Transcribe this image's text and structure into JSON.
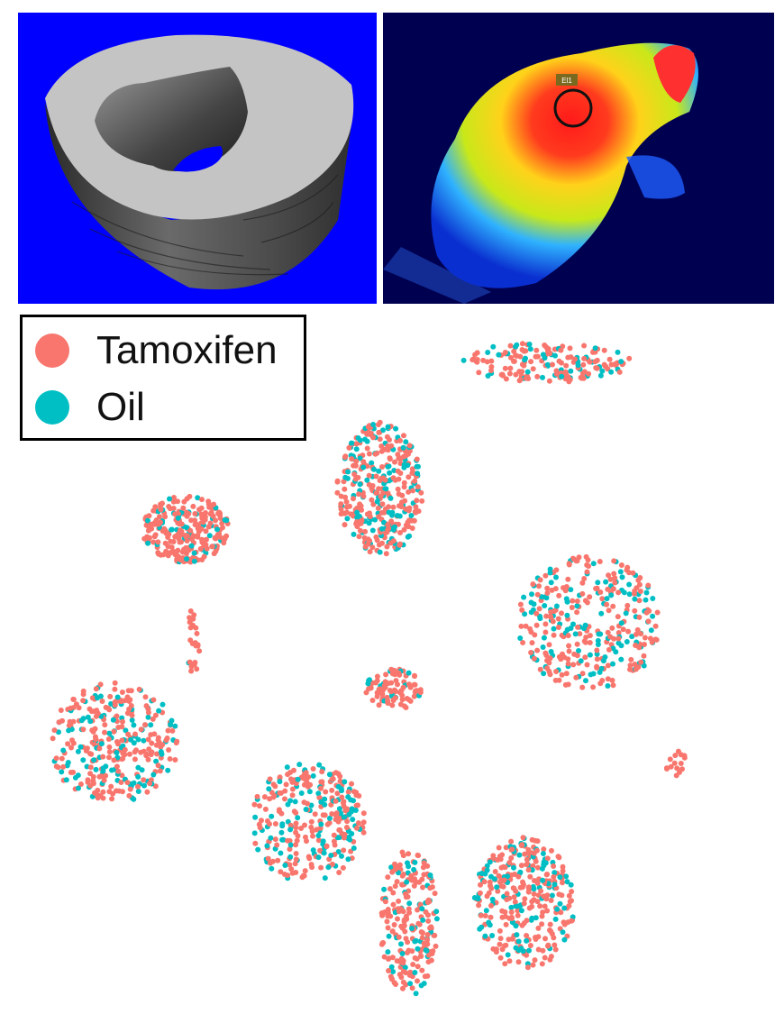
{
  "panels": {
    "bone": {
      "label": "",
      "background": "#0000ff"
    },
    "thermal": {
      "background": "#000050",
      "roi_label": "El1"
    }
  },
  "legend": [
    {
      "name": "Tamoxifen",
      "color": "#f8766d"
    },
    {
      "name": "Oil",
      "color": "#00bfc4"
    }
  ],
  "chart_data": {
    "type": "scatter",
    "title": "",
    "xlabel": "",
    "ylabel": "",
    "grid": false,
    "legend_position": "top-left",
    "xlim": [
      0,
      100
    ],
    "ylim": [
      0,
      100
    ],
    "series": [
      {
        "name": "Tamoxifen",
        "color": "#f8766d"
      },
      {
        "name": "Oil",
        "color": "#00bfc4"
      }
    ],
    "clusters": [
      {
        "id": "c1",
        "cx": 72,
        "cy": 95,
        "rx": 12,
        "ry": 3,
        "n": 170,
        "oil": 0.3
      },
      {
        "id": "c2",
        "cx": 49,
        "cy": 76,
        "rx": 6,
        "ry": 10,
        "n": 360,
        "oil": 0.3
      },
      {
        "id": "c3",
        "cx": 22,
        "cy": 70,
        "rx": 6,
        "ry": 5,
        "n": 260,
        "oil": 0.15
      },
      {
        "id": "c4",
        "cx": 23,
        "cy": 53,
        "rx": 1,
        "ry": 5,
        "n": 25,
        "oil": 0.1
      },
      {
        "id": "c5",
        "cx": 78,
        "cy": 56,
        "rx": 10,
        "ry": 10,
        "n": 330,
        "oil": 0.35
      },
      {
        "id": "c6",
        "cx": 51,
        "cy": 46,
        "rx": 4,
        "ry": 3,
        "n": 90,
        "oil": 0.15
      },
      {
        "id": "c7",
        "cx": 12,
        "cy": 38,
        "rx": 9,
        "ry": 9,
        "n": 320,
        "oil": 0.3
      },
      {
        "id": "c8",
        "cx": 39,
        "cy": 26,
        "rx": 8,
        "ry": 9,
        "n": 300,
        "oil": 0.35
      },
      {
        "id": "c9",
        "cx": 53,
        "cy": 11,
        "rx": 4,
        "ry": 11,
        "n": 230,
        "oil": 0.2
      },
      {
        "id": "c10",
        "cx": 69,
        "cy": 14,
        "rx": 7,
        "ry": 10,
        "n": 330,
        "oil": 0.3
      },
      {
        "id": "c11",
        "cx": 90,
        "cy": 35,
        "rx": 1.5,
        "ry": 2,
        "n": 15,
        "oil": 0.2
      }
    ]
  }
}
